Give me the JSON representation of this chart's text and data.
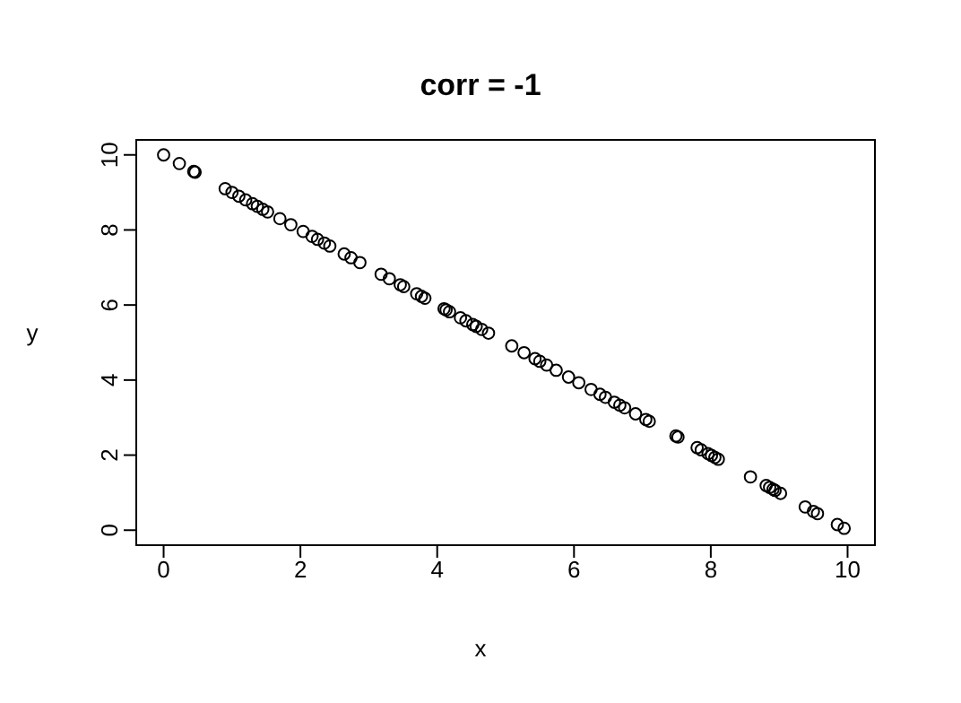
{
  "chart_data": {
    "type": "scatter",
    "title": "corr = -1",
    "xlabel": "x",
    "ylabel": "y",
    "x": [
      0,
      0.23,
      0.44,
      0.46,
      0.9,
      1.0,
      1.1,
      1.2,
      1.3,
      1.37,
      1.45,
      1.52,
      1.7,
      1.86,
      2.04,
      2.17,
      2.25,
      2.35,
      2.43,
      2.64,
      2.74,
      2.87,
      3.18,
      3.3,
      3.46,
      3.51,
      3.7,
      3.77,
      3.82,
      4.1,
      4.13,
      4.18,
      4.34,
      4.42,
      4.52,
      4.57,
      4.65,
      4.75,
      5.09,
      5.27,
      5.43,
      5.5,
      5.6,
      5.74,
      5.92,
      6.07,
      6.25,
      6.38,
      6.46,
      6.59,
      6.67,
      6.74,
      6.9,
      7.05,
      7.1,
      7.49,
      7.52,
      7.8,
      7.86,
      7.96,
      8.01,
      8.06,
      8.11,
      8.58,
      8.81,
      8.86,
      8.91,
      8.94,
      9.02,
      9.38,
      9.5,
      9.56,
      9.85,
      9.95
    ],
    "values": [
      10,
      9.77,
      9.56,
      9.54,
      9.1,
      9.0,
      8.9,
      8.8,
      8.7,
      8.63,
      8.55,
      8.48,
      8.3,
      8.14,
      7.96,
      7.83,
      7.75,
      7.65,
      7.57,
      7.36,
      7.26,
      7.13,
      6.82,
      6.7,
      6.54,
      6.49,
      6.3,
      6.23,
      6.18,
      5.9,
      5.87,
      5.82,
      5.66,
      5.58,
      5.48,
      5.43,
      5.35,
      5.25,
      4.91,
      4.73,
      4.57,
      4.5,
      4.4,
      4.26,
      4.08,
      3.93,
      3.75,
      3.62,
      3.54,
      3.41,
      3.33,
      3.26,
      3.1,
      2.95,
      2.9,
      2.51,
      2.48,
      2.2,
      2.14,
      2.04,
      1.99,
      1.94,
      1.89,
      1.42,
      1.19,
      1.14,
      1.09,
      1.06,
      0.98,
      0.62,
      0.5,
      0.44,
      0.15,
      0.05
    ],
    "color": "#000000",
    "marker": "circle",
    "xlim": [
      -0.4,
      10.4
    ],
    "ylim": [
      -0.4,
      10.4
    ],
    "xticks": [
      0,
      2,
      4,
      6,
      8,
      10
    ],
    "yticks": [
      0,
      2,
      4,
      6,
      8,
      10
    ],
    "grid": false,
    "legend": false
  }
}
